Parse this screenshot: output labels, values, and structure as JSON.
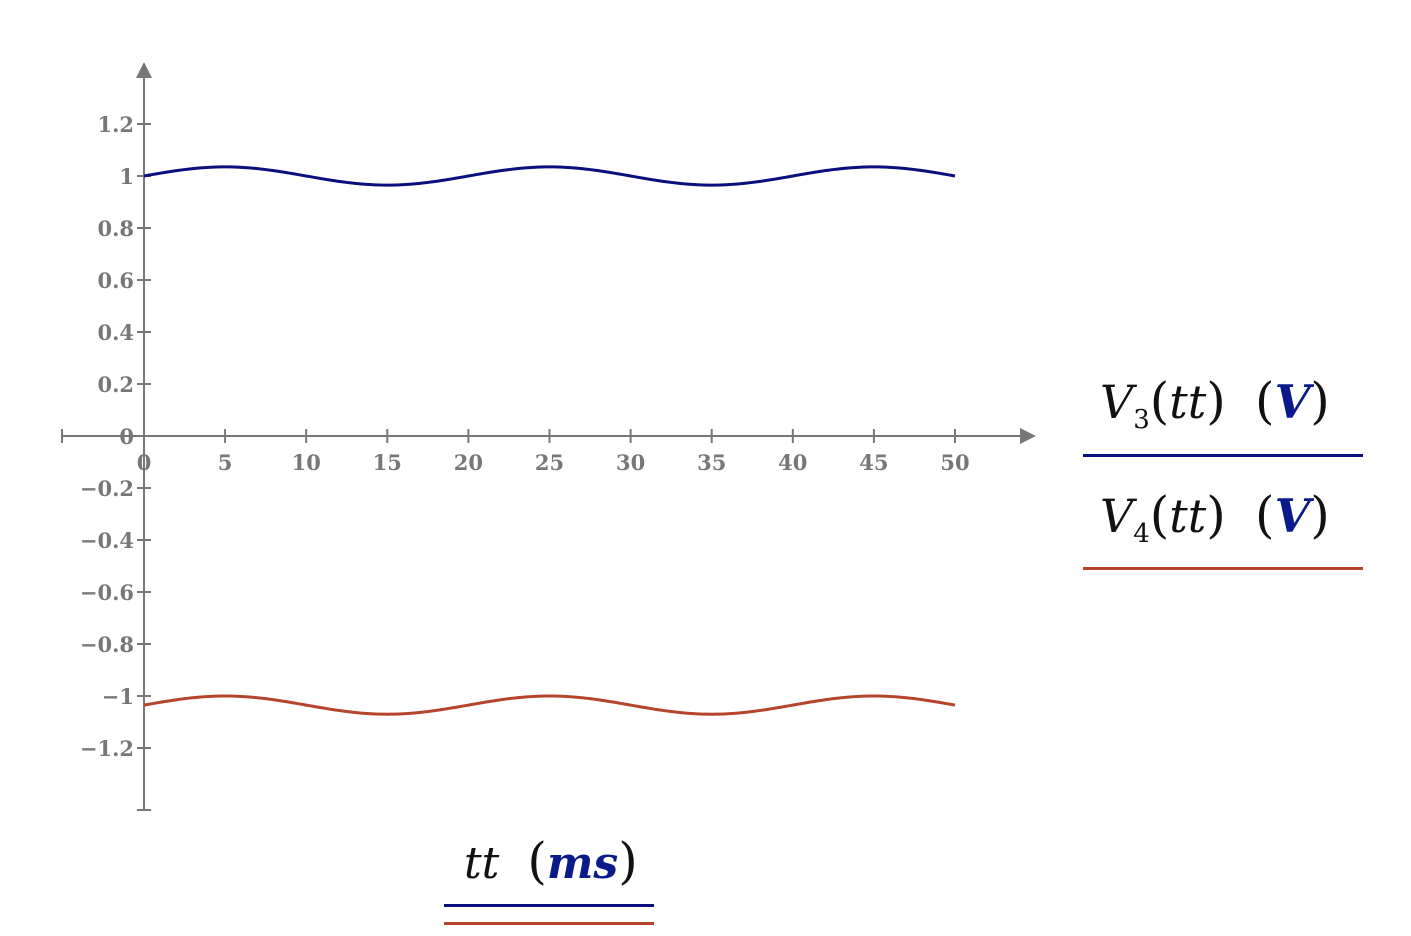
{
  "chart_data": {
    "type": "line",
    "title": "",
    "xlabel": "tt (ms)",
    "ylabel": "",
    "xlim": [
      -5,
      55
    ],
    "ylim": [
      -1.44,
      1.44
    ],
    "x_ticks": [
      0,
      5,
      10,
      15,
      20,
      25,
      30,
      35,
      40,
      45,
      50
    ],
    "y_ticks": [
      1.2,
      1,
      0.8,
      0.6,
      0.4,
      0.2,
      0,
      -0.2,
      -0.4,
      -0.6,
      -0.8,
      -1,
      -1.2
    ],
    "grid": false,
    "legend_position": "right",
    "series": [
      {
        "name": "V3(tt) (V)",
        "color": "#0a0f80",
        "x": [
          0,
          2.5,
          5,
          7.5,
          10,
          12.5,
          15,
          17.5,
          20,
          22.5,
          25,
          27.5,
          30,
          32.5,
          35,
          37.5,
          40,
          42.5,
          45,
          47.5,
          50
        ],
        "values": [
          1.0,
          1.025,
          1.035,
          1.025,
          1.0,
          0.975,
          0.965,
          0.975,
          1.0,
          1.025,
          1.035,
          1.025,
          1.0,
          0.975,
          0.965,
          0.975,
          1.0,
          1.025,
          1.035,
          1.025,
          1.0
        ]
      },
      {
        "name": "V4(tt) (V)",
        "color": "#b5452a",
        "x": [
          0,
          2.5,
          5,
          7.5,
          10,
          12.5,
          15,
          17.5,
          20,
          22.5,
          25,
          27.5,
          30,
          32.5,
          35,
          37.5,
          40,
          42.5,
          45,
          47.5,
          50
        ],
        "values": [
          -1.035,
          -1.01,
          -1.0,
          -1.01,
          -1.035,
          -1.06,
          -1.07,
          -1.06,
          -1.035,
          -1.01,
          -1.0,
          -1.01,
          -1.035,
          -1.06,
          -1.07,
          -1.06,
          -1.035,
          -1.01,
          -1.0,
          -1.01,
          -1.035
        ]
      }
    ]
  },
  "labels": {
    "x_ticks": [
      "0",
      "5",
      "10",
      "15",
      "20",
      "25",
      "30",
      "35",
      "40",
      "45",
      "50"
    ],
    "y_ticks": [
      "1.2",
      "1",
      "0.8",
      "0.6",
      "0.4",
      "0.2",
      "0",
      "−0.2",
      "−0.4",
      "−0.6",
      "−0.8",
      "−1",
      "−1.2"
    ]
  },
  "legend": {
    "series1": {
      "var": "V",
      "sub": "3",
      "arg": "tt",
      "unit": "V",
      "color": "#0a0f80"
    },
    "series2": {
      "var": "V",
      "sub": "4",
      "arg": "tt",
      "unit": "V",
      "color": "#b5452a"
    },
    "xaxis": {
      "var": "tt",
      "unit": "ms"
    }
  },
  "colors": {
    "axis": "#777777",
    "series1": "#0a0f80",
    "series2": "#b5452a",
    "unit": "#0a1a8a"
  }
}
